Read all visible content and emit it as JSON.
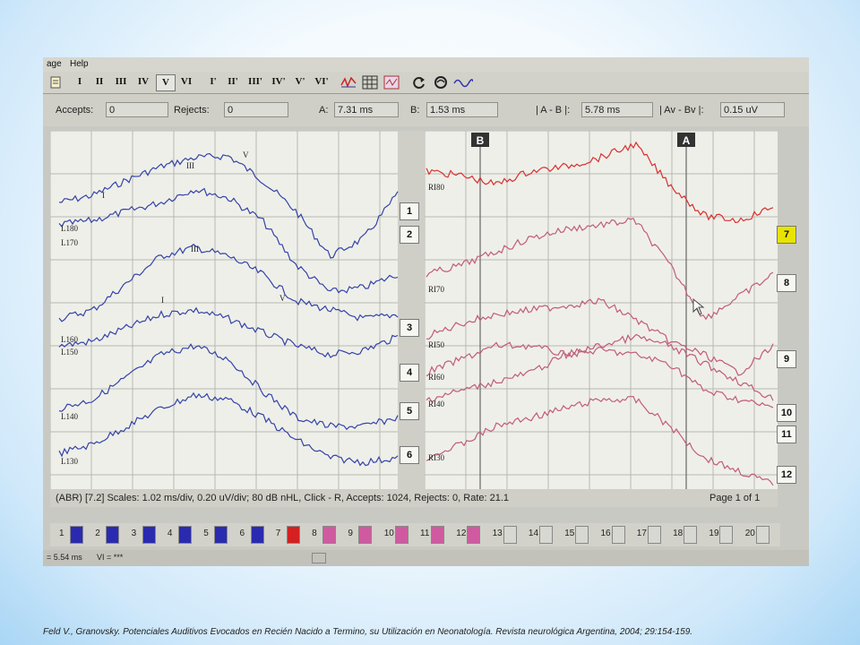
{
  "menu": {
    "items": [
      "age",
      "Help"
    ]
  },
  "toolbar": {
    "buttons": [
      "I",
      "II",
      "III",
      "IV",
      "V",
      "VI",
      "I'",
      "II'",
      "III'",
      "IV'",
      "V'",
      "VI'"
    ],
    "selected": "V",
    "icons": [
      "doc-icon",
      "waveform-icon",
      "grid-icon",
      "zoom-box-icon",
      "refresh-icon",
      "stimulus-icon",
      "wave-icon"
    ]
  },
  "fields": {
    "accepts_label": "Accepts:",
    "accepts_value": "0",
    "rejects_label": "Rejects:",
    "rejects_value": "0",
    "a_label": "A:",
    "a_value": "7.31 ms",
    "b_label": "B:",
    "b_value": "1.53 ms",
    "ab_label": "| A - B |:",
    "ab_value": "5.78 ms",
    "avbv_label": "| Av - Bv |:",
    "avbv_value": "0.15 uV"
  },
  "cursors": {
    "b_label": "B",
    "a_label": "A"
  },
  "left_panel": {
    "trace_labels": [
      "L180",
      "L170",
      "L160",
      "L150",
      "L140",
      "L130"
    ],
    "peak_labels": [
      "I",
      "III",
      "V"
    ]
  },
  "right_panel": {
    "trace_labels": [
      "RI80",
      "RI70",
      "RI50",
      "RI60",
      "RI40",
      "RI30"
    ]
  },
  "channel_buttons_left": [
    "1",
    "2",
    "3",
    "4",
    "5",
    "6"
  ],
  "channel_buttons_right": [
    "7",
    "8",
    "9",
    "10",
    "11",
    "12"
  ],
  "selected_channel": "7",
  "status": {
    "text": "(ABR) [7.2]  Scales: 1.02 ms/div,  0.20 uV/div;  80 dB nHL,  Click - R,  Accepts: 1024,  Rejects: 0,  Rate: 21.1",
    "page": "Page 1 of 1"
  },
  "swatches": [
    {
      "n": "1",
      "color": "#2a2ab0"
    },
    {
      "n": "2",
      "color": "#2a2ab0"
    },
    {
      "n": "3",
      "color": "#2a2ab0"
    },
    {
      "n": "4",
      "color": "#2a2ab0"
    },
    {
      "n": "5",
      "color": "#2a2ab0"
    },
    {
      "n": "6",
      "color": "#2a2ab0"
    },
    {
      "n": "7",
      "color": "#d42020"
    },
    {
      "n": "8",
      "color": "#d05aa0"
    },
    {
      "n": "9",
      "color": "#d05aa0"
    },
    {
      "n": "10",
      "color": "#d05aa0"
    },
    {
      "n": "11",
      "color": "#d05aa0"
    },
    {
      "n": "12",
      "color": "#d05aa0"
    },
    {
      "n": "13",
      "color": ""
    },
    {
      "n": "14",
      "color": ""
    },
    {
      "n": "15",
      "color": ""
    },
    {
      "n": "16",
      "color": ""
    },
    {
      "n": "17",
      "color": ""
    },
    {
      "n": "18",
      "color": ""
    },
    {
      "n": "19",
      "color": ""
    },
    {
      "n": "20",
      "color": ""
    }
  ],
  "bottom": {
    "left": "= 5.54 ms",
    "mid": "VI = ***"
  },
  "colors": {
    "left_traces": "#3344a8",
    "right_top_trace": "#d83030",
    "right_traces": "#c05c7a",
    "selected_channel": "#e8e400"
  },
  "citation": "Feld V., Granovsky.  Potenciales Auditivos Evocados en Recién Nacido a Termino, su Utilización  en Neonatología.  Revista neurológica Argentina, 2004; 29:154-159."
}
